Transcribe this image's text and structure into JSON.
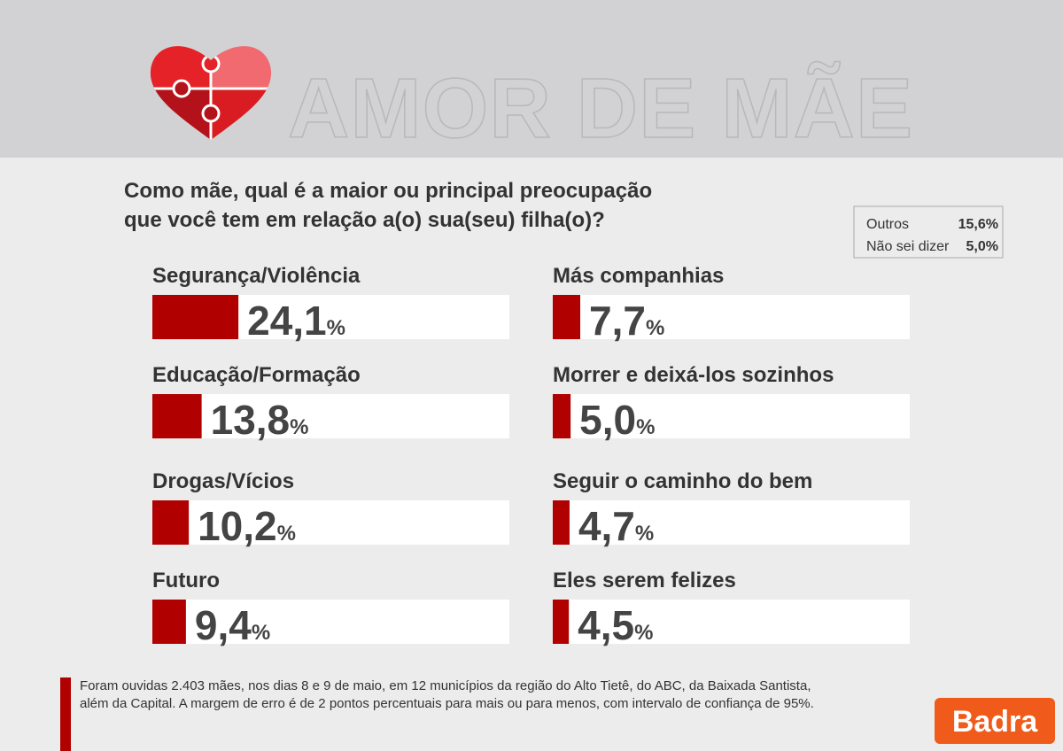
{
  "header": {
    "title": "AMOR DE MÃE"
  },
  "chart_data": {
    "type": "bar",
    "title": [
      "Como mãe, qual é a maior ou principal preocupação",
      "que você tem em relação a(o) sua(seu) filha(o)?"
    ],
    "categories": [
      "Segurança/Violência",
      "Educação/Formação",
      "Drogas/Vícios",
      "Futuro",
      "Más companhias",
      "Morrer e deixá-los sozinhos",
      "Seguir o caminho do bem",
      "Eles serem felizes"
    ],
    "values": [
      24.1,
      13.8,
      10.2,
      9.4,
      7.7,
      5.0,
      4.7,
      4.5
    ],
    "value_labels": [
      "24,1%",
      "13,8%",
      "10,2%",
      "9,4%",
      "7,7%",
      "5,0%",
      "4,7%",
      "4,5%"
    ],
    "color": "#b00000",
    "xlim": [
      0,
      100
    ],
    "others": {
      "categories": [
        "Outros",
        "Não sei dizer"
      ],
      "value_labels": [
        "15,6%",
        "5,0%"
      ]
    }
  },
  "note": [
    "Foram ouvidas 2.403 mães, nos dias 8 e 9 de maio, em 12 municípios da região do Alto Tietê, do ABC, da Baixada Santista,",
    "além da Capital. A margem de erro é de 2 pontos percentuais para mais ou para menos, com intervalo de confiança de 95%."
  ],
  "logo": "Badra"
}
